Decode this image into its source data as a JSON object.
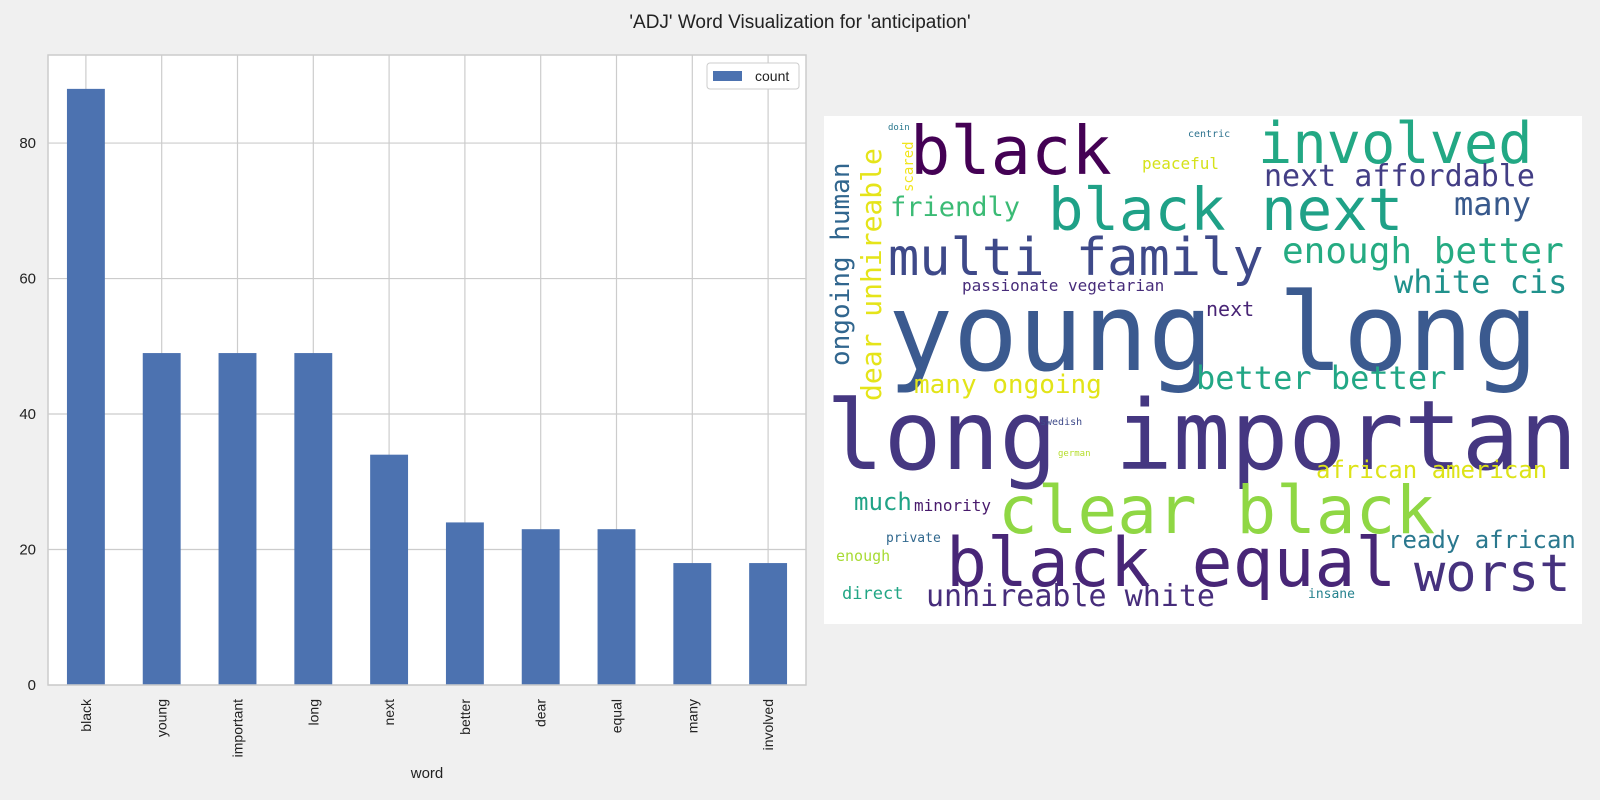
{
  "figure": {
    "title": "'ADJ' Word Visualization for 'anticipation'"
  },
  "chart_data": {
    "type": "bar",
    "categories": [
      "black",
      "young",
      "important",
      "long",
      "next",
      "better",
      "dear",
      "equal",
      "many",
      "involved"
    ],
    "series": [
      {
        "name": "count",
        "values": [
          88,
          49,
          49,
          49,
          34,
          24,
          23,
          23,
          18,
          18
        ]
      }
    ],
    "xlabel": "word",
    "ylabel": "",
    "ylim": [
      0,
      93
    ],
    "yticks": [
      0,
      20,
      40,
      60,
      80
    ],
    "grid": true,
    "legend": "top-right",
    "bar_color": "#4c72b0"
  },
  "wordcloud": {
    "words": [
      {
        "text": "young long",
        "color": "#3b5a8f"
      },
      {
        "text": "long important",
        "color": "#453781"
      },
      {
        "text": "black",
        "color": "#440154"
      },
      {
        "text": "involved",
        "color": "#22a884"
      },
      {
        "text": "black next",
        "color": "#1fa187"
      },
      {
        "text": "multi family",
        "color": "#3e4989"
      },
      {
        "text": "clear black",
        "color": "#8fd744"
      },
      {
        "text": "black equal",
        "color": "#482677"
      },
      {
        "text": "worst",
        "color": "#46327e"
      },
      {
        "text": "next affordable",
        "color": "#433e85"
      },
      {
        "text": "many",
        "color": "#38598c"
      },
      {
        "text": "enough better",
        "color": "#25ab82"
      },
      {
        "text": "white cis",
        "color": "#20928c"
      },
      {
        "text": "better better",
        "color": "#22a785"
      },
      {
        "text": "african american",
        "color": "#dde318"
      },
      {
        "text": "ready african",
        "color": "#2a788e"
      },
      {
        "text": "unhireable white",
        "color": "#472d7b"
      },
      {
        "text": "friendly",
        "color": "#3bbb75"
      },
      {
        "text": "many ongoing",
        "color": "#e2e418"
      },
      {
        "text": "much",
        "color": "#20a386"
      },
      {
        "text": "passionate vegetarian",
        "color": "#472c7a"
      },
      {
        "text": "next",
        "color": "#482475"
      },
      {
        "text": "ongoing human",
        "color": "#31668e"
      },
      {
        "text": "dear unhireable",
        "color": "#e5e419"
      },
      {
        "text": "scared",
        "color": "#f1e51d"
      },
      {
        "text": "peaceful",
        "color": "#d5e21a"
      },
      {
        "text": "minority",
        "color": "#481a6c"
      },
      {
        "text": "private",
        "color": "#31688e"
      },
      {
        "text": "enough",
        "color": "#a8db34"
      },
      {
        "text": "direct",
        "color": "#21a685"
      },
      {
        "text": "insane",
        "color": "#26828e"
      },
      {
        "text": "swedish",
        "color": "#3e4a89"
      },
      {
        "text": "german",
        "color": "#b5de2b"
      },
      {
        "text": "centric",
        "color": "#2c728e"
      },
      {
        "text": "doin",
        "color": "#2a788e"
      }
    ]
  }
}
